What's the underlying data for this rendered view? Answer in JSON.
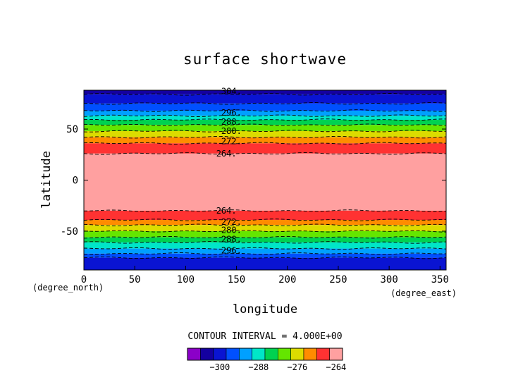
{
  "chart_data": {
    "type": "heatmap",
    "title": "surface shortwave",
    "xlabel": "longitude",
    "ylabel": "latitude",
    "x_unit": "(degree_east)",
    "y_unit": "(degree_north)",
    "xlim": [
      0,
      356
    ],
    "ylim": [
      -88,
      88
    ],
    "xticks": [
      0,
      50,
      100,
      150,
      200,
      250,
      300,
      350
    ],
    "yticks": [
      -50,
      0,
      50
    ],
    "grid": false,
    "contour_interval_text": "CONTOUR INTERVAL = 4.000E+00",
    "levels": [
      -308,
      -304,
      -300,
      -296,
      -292,
      -288,
      -284,
      -280,
      -276,
      -272,
      -268,
      -264
    ],
    "colors": [
      "#8b00c8",
      "#1400a0",
      "#0a14d2",
      "#0050ff",
      "#00a0ff",
      "#00e6c8",
      "#00d250",
      "#64e600",
      "#dcdc00",
      "#ff8c00",
      "#ff3232",
      "#ffa0a0"
    ],
    "bands": [
      {
        "lat_min": 84,
        "lat_max": 88,
        "level": -304
      },
      {
        "lat_min": 75,
        "lat_max": 84,
        "level": -300
      },
      {
        "lat_min": 68,
        "lat_max": 75,
        "level": -296
      },
      {
        "lat_min": 63,
        "lat_max": 68,
        "level": -292
      },
      {
        "lat_min": 59,
        "lat_max": 63,
        "level": -288
      },
      {
        "lat_min": 54,
        "lat_max": 59,
        "level": -284
      },
      {
        "lat_min": 48,
        "lat_max": 54,
        "level": -280
      },
      {
        "lat_min": 42,
        "lat_max": 48,
        "level": -276
      },
      {
        "lat_min": 36,
        "lat_max": 42,
        "level": -272
      },
      {
        "lat_min": 26,
        "lat_max": 36,
        "level": -268
      },
      {
        "lat_min": -30,
        "lat_max": 26,
        "level": -264
      },
      {
        "lat_min": -39,
        "lat_max": -30,
        "level": -268
      },
      {
        "lat_min": -44,
        "lat_max": -39,
        "level": -272
      },
      {
        "lat_min": -50,
        "lat_max": -44,
        "level": -276
      },
      {
        "lat_min": -56,
        "lat_max": -50,
        "level": -280
      },
      {
        "lat_min": -61,
        "lat_max": -56,
        "level": -284
      },
      {
        "lat_min": -67,
        "lat_max": -61,
        "level": -288
      },
      {
        "lat_min": -72,
        "lat_max": -67,
        "level": -292
      },
      {
        "lat_min": -76,
        "lat_max": -72,
        "level": -296
      },
      {
        "lat_min": -88,
        "lat_max": -76,
        "level": -300
      }
    ],
    "contour_labels": [
      {
        "text": "304.",
        "lon": 135,
        "lat": 87
      },
      {
        "text": "296.",
        "lon": 135,
        "lat": 66
      },
      {
        "text": "288.",
        "lon": 135,
        "lat": 57
      },
      {
        "text": "280.",
        "lon": 135,
        "lat": 48
      },
      {
        "text": "272.",
        "lon": 135,
        "lat": 38
      },
      {
        "text": "264.",
        "lon": 130,
        "lat": 26
      },
      {
        "text": "264.",
        "lon": 130,
        "lat": -30
      },
      {
        "text": "272.",
        "lon": 135,
        "lat": -41
      },
      {
        "text": "280.",
        "lon": 135,
        "lat": -49
      },
      {
        "text": "288.",
        "lon": 135,
        "lat": -58
      },
      {
        "text": "296.",
        "lon": 135,
        "lat": -69
      }
    ],
    "colorbar_tick_labels": [
      {
        "text": "−300",
        "level": -300
      },
      {
        "text": "−288",
        "level": -288
      },
      {
        "text": "−276",
        "level": -276
      },
      {
        "text": "−264",
        "level": -264
      }
    ]
  }
}
